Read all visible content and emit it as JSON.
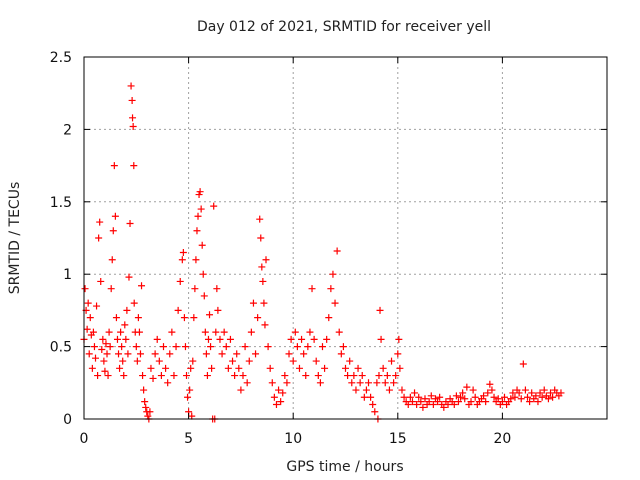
{
  "chart_data": {
    "type": "scatter",
    "title": "Day 012 of 2021, SRMTID for receiver yell",
    "xlabel": "GPS time / hours",
    "ylabel": "SRMTID / TECUs",
    "xlim": [
      0,
      25
    ],
    "ylim": [
      0,
      2.5
    ],
    "xticks": [
      0,
      5,
      10,
      15,
      20
    ],
    "yticks": [
      0,
      0.5,
      1,
      1.5,
      2,
      2.5
    ],
    "xtick_labels": [
      "0",
      "5",
      "10",
      "15",
      "20"
    ],
    "ytick_labels": [
      "0",
      "0.5",
      "1",
      "1.5",
      "2",
      "2.5"
    ],
    "grid": true,
    "marker": "+",
    "series": [
      {
        "name": "SRMTID",
        "color": "#ff0000",
        "points": [
          [
            0.0,
            0.55
          ],
          [
            0.05,
            0.9
          ],
          [
            0.1,
            0.75
          ],
          [
            0.15,
            0.62
          ],
          [
            0.2,
            0.8
          ],
          [
            0.25,
            0.45
          ],
          [
            0.3,
            0.7
          ],
          [
            0.35,
            0.58
          ],
          [
            0.4,
            0.35
          ],
          [
            0.45,
            0.6
          ],
          [
            0.5,
            0.5
          ],
          [
            0.55,
            0.42
          ],
          [
            0.6,
            0.78
          ],
          [
            0.65,
            0.3
          ],
          [
            0.7,
            1.25
          ],
          [
            0.75,
            1.36
          ],
          [
            0.8,
            0.95
          ],
          [
            0.85,
            0.48
          ],
          [
            0.9,
            0.55
          ],
          [
            0.95,
            0.4
          ],
          [
            1.0,
            0.33
          ],
          [
            1.05,
            0.52
          ],
          [
            1.1,
            0.45
          ],
          [
            1.15,
            0.3
          ],
          [
            1.2,
            0.6
          ],
          [
            1.25,
            0.5
          ],
          [
            1.3,
            0.9
          ],
          [
            1.35,
            1.1
          ],
          [
            1.4,
            1.3
          ],
          [
            1.45,
            1.75
          ],
          [
            1.5,
            1.4
          ],
          [
            1.55,
            0.7
          ],
          [
            1.6,
            0.55
          ],
          [
            1.65,
            0.45
          ],
          [
            1.7,
            0.35
          ],
          [
            1.75,
            0.6
          ],
          [
            1.8,
            0.5
          ],
          [
            1.85,
            0.4
          ],
          [
            1.9,
            0.3
          ],
          [
            1.95,
            0.65
          ],
          [
            2.0,
            0.55
          ],
          [
            2.05,
            0.75
          ],
          [
            2.1,
            0.45
          ],
          [
            2.15,
            0.98
          ],
          [
            2.2,
            1.35
          ],
          [
            2.25,
            2.3
          ],
          [
            2.3,
            2.2
          ],
          [
            2.32,
            2.08
          ],
          [
            2.35,
            2.02
          ],
          [
            2.38,
            1.75
          ],
          [
            2.4,
            0.8
          ],
          [
            2.45,
            0.6
          ],
          [
            2.5,
            0.5
          ],
          [
            2.55,
            0.4
          ],
          [
            2.6,
            0.7
          ],
          [
            2.65,
            0.6
          ],
          [
            2.7,
            0.45
          ],
          [
            2.75,
            0.92
          ],
          [
            2.8,
            0.3
          ],
          [
            2.85,
            0.2
          ],
          [
            2.9,
            0.12
          ],
          [
            2.95,
            0.08
          ],
          [
            3.0,
            0.05
          ],
          [
            3.05,
            0.02
          ],
          [
            3.1,
            0.0
          ],
          [
            3.15,
            0.05
          ],
          [
            3.2,
            0.35
          ],
          [
            3.3,
            0.28
          ],
          [
            3.4,
            0.45
          ],
          [
            3.5,
            0.55
          ],
          [
            3.6,
            0.4
          ],
          [
            3.7,
            0.3
          ],
          [
            3.8,
            0.5
          ],
          [
            3.9,
            0.35
          ],
          [
            4.0,
            0.25
          ],
          [
            4.1,
            0.45
          ],
          [
            4.2,
            0.6
          ],
          [
            4.3,
            0.3
          ],
          [
            4.4,
            0.5
          ],
          [
            4.5,
            0.75
          ],
          [
            4.6,
            0.95
          ],
          [
            4.7,
            1.1
          ],
          [
            4.75,
            1.15
          ],
          [
            4.8,
            0.7
          ],
          [
            4.85,
            0.5
          ],
          [
            4.9,
            0.3
          ],
          [
            4.95,
            0.15
          ],
          [
            5.0,
            0.05
          ],
          [
            5.05,
            0.2
          ],
          [
            5.1,
            0.35
          ],
          [
            5.15,
            0.02
          ],
          [
            5.2,
            0.4
          ],
          [
            5.25,
            0.7
          ],
          [
            5.3,
            0.9
          ],
          [
            5.35,
            1.1
          ],
          [
            5.4,
            1.3
          ],
          [
            5.45,
            1.4
          ],
          [
            5.5,
            1.55
          ],
          [
            5.55,
            1.57
          ],
          [
            5.6,
            1.45
          ],
          [
            5.65,
            1.2
          ],
          [
            5.7,
            1.0
          ],
          [
            5.75,
            0.85
          ],
          [
            5.8,
            0.6
          ],
          [
            5.85,
            0.45
          ],
          [
            5.9,
            0.3
          ],
          [
            5.95,
            0.55
          ],
          [
            6.0,
            0.72
          ],
          [
            6.05,
            0.5
          ],
          [
            6.1,
            0.35
          ],
          [
            6.15,
            0.0
          ],
          [
            6.2,
            1.47
          ],
          [
            6.25,
            0.0
          ],
          [
            6.3,
            0.6
          ],
          [
            6.35,
            0.9
          ],
          [
            6.4,
            0.75
          ],
          [
            6.5,
            0.55
          ],
          [
            6.6,
            0.45
          ],
          [
            6.7,
            0.6
          ],
          [
            6.8,
            0.5
          ],
          [
            6.9,
            0.35
          ],
          [
            7.0,
            0.55
          ],
          [
            7.1,
            0.4
          ],
          [
            7.2,
            0.3
          ],
          [
            7.3,
            0.45
          ],
          [
            7.4,
            0.35
          ],
          [
            7.5,
            0.2
          ],
          [
            7.6,
            0.3
          ],
          [
            7.7,
            0.5
          ],
          [
            7.8,
            0.25
          ],
          [
            7.9,
            0.4
          ],
          [
            8.0,
            0.6
          ],
          [
            8.1,
            0.8
          ],
          [
            8.2,
            0.45
          ],
          [
            8.3,
            0.7
          ],
          [
            8.4,
            1.38
          ],
          [
            8.45,
            1.25
          ],
          [
            8.5,
            1.05
          ],
          [
            8.55,
            0.95
          ],
          [
            8.6,
            0.8
          ],
          [
            8.65,
            0.65
          ],
          [
            8.7,
            1.1
          ],
          [
            8.8,
            0.5
          ],
          [
            8.9,
            0.35
          ],
          [
            9.0,
            0.25
          ],
          [
            9.1,
            0.15
          ],
          [
            9.2,
            0.1
          ],
          [
            9.3,
            0.2
          ],
          [
            9.4,
            0.12
          ],
          [
            9.5,
            0.18
          ],
          [
            9.6,
            0.3
          ],
          [
            9.7,
            0.25
          ],
          [
            9.8,
            0.45
          ],
          [
            9.9,
            0.55
          ],
          [
            10.0,
            0.4
          ],
          [
            10.1,
            0.6
          ],
          [
            10.2,
            0.5
          ],
          [
            10.3,
            0.35
          ],
          [
            10.4,
            0.55
          ],
          [
            10.5,
            0.45
          ],
          [
            10.6,
            0.3
          ],
          [
            10.7,
            0.5
          ],
          [
            10.8,
            0.6
          ],
          [
            10.9,
            0.9
          ],
          [
            11.0,
            0.55
          ],
          [
            11.1,
            0.4
          ],
          [
            11.2,
            0.3
          ],
          [
            11.3,
            0.25
          ],
          [
            11.4,
            0.5
          ],
          [
            11.5,
            0.35
          ],
          [
            11.6,
            0.55
          ],
          [
            11.7,
            0.7
          ],
          [
            11.8,
            0.9
          ],
          [
            11.9,
            1.0
          ],
          [
            12.0,
            0.8
          ],
          [
            12.1,
            1.16
          ],
          [
            12.2,
            0.6
          ],
          [
            12.3,
            0.45
          ],
          [
            12.4,
            0.5
          ],
          [
            12.5,
            0.35
          ],
          [
            12.6,
            0.3
          ],
          [
            12.7,
            0.4
          ],
          [
            12.8,
            0.25
          ],
          [
            12.9,
            0.3
          ],
          [
            13.0,
            0.2
          ],
          [
            13.1,
            0.35
          ],
          [
            13.2,
            0.25
          ],
          [
            13.3,
            0.3
          ],
          [
            13.4,
            0.15
          ],
          [
            13.5,
            0.2
          ],
          [
            13.6,
            0.25
          ],
          [
            13.7,
            0.15
          ],
          [
            13.8,
            0.1
          ],
          [
            13.9,
            0.05
          ],
          [
            14.0,
            0.25
          ],
          [
            14.05,
            0.0
          ],
          [
            14.1,
            0.3
          ],
          [
            14.15,
            0.75
          ],
          [
            14.2,
            0.55
          ],
          [
            14.3,
            0.35
          ],
          [
            14.4,
            0.25
          ],
          [
            14.5,
            0.3
          ],
          [
            14.6,
            0.2
          ],
          [
            14.7,
            0.4
          ],
          [
            14.8,
            0.25
          ],
          [
            14.9,
            0.3
          ],
          [
            15.0,
            0.45
          ],
          [
            15.05,
            0.55
          ],
          [
            15.1,
            0.35
          ],
          [
            15.2,
            0.2
          ],
          [
            15.3,
            0.15
          ],
          [
            15.4,
            0.12
          ],
          [
            15.5,
            0.1
          ],
          [
            15.6,
            0.15
          ],
          [
            15.7,
            0.12
          ],
          [
            15.8,
            0.18
          ],
          [
            15.9,
            0.1
          ],
          [
            16.0,
            0.15
          ],
          [
            16.1,
            0.12
          ],
          [
            16.2,
            0.08
          ],
          [
            16.3,
            0.14
          ],
          [
            16.4,
            0.1
          ],
          [
            16.5,
            0.12
          ],
          [
            16.6,
            0.16
          ],
          [
            16.7,
            0.1
          ],
          [
            16.8,
            0.14
          ],
          [
            16.9,
            0.12
          ],
          [
            17.0,
            0.15
          ],
          [
            17.1,
            0.1
          ],
          [
            17.2,
            0.08
          ],
          [
            17.3,
            0.12
          ],
          [
            17.4,
            0.1
          ],
          [
            17.5,
            0.14
          ],
          [
            17.6,
            0.12
          ],
          [
            17.7,
            0.1
          ],
          [
            17.8,
            0.16
          ],
          [
            17.9,
            0.12
          ],
          [
            18.0,
            0.15
          ],
          [
            18.1,
            0.18
          ],
          [
            18.2,
            0.14
          ],
          [
            18.3,
            0.22
          ],
          [
            18.4,
            0.1
          ],
          [
            18.5,
            0.12
          ],
          [
            18.6,
            0.2
          ],
          [
            18.7,
            0.15
          ],
          [
            18.8,
            0.1
          ],
          [
            18.9,
            0.12
          ],
          [
            19.0,
            0.14
          ],
          [
            19.1,
            0.16
          ],
          [
            19.2,
            0.12
          ],
          [
            19.3,
            0.18
          ],
          [
            19.4,
            0.24
          ],
          [
            19.5,
            0.2
          ],
          [
            19.6,
            0.15
          ],
          [
            19.7,
            0.12
          ],
          [
            19.8,
            0.14
          ],
          [
            19.9,
            0.1
          ],
          [
            20.0,
            0.12
          ],
          [
            20.1,
            0.15
          ],
          [
            20.2,
            0.1
          ],
          [
            20.3,
            0.12
          ],
          [
            20.4,
            0.14
          ],
          [
            20.5,
            0.18
          ],
          [
            20.6,
            0.15
          ],
          [
            20.7,
            0.2
          ],
          [
            20.8,
            0.18
          ],
          [
            20.9,
            0.14
          ],
          [
            21.0,
            0.38
          ],
          [
            21.1,
            0.2
          ],
          [
            21.2,
            0.15
          ],
          [
            21.3,
            0.12
          ],
          [
            21.4,
            0.18
          ],
          [
            21.5,
            0.14
          ],
          [
            21.6,
            0.16
          ],
          [
            21.7,
            0.12
          ],
          [
            21.8,
            0.18
          ],
          [
            21.9,
            0.15
          ],
          [
            22.0,
            0.2
          ],
          [
            22.1,
            0.16
          ],
          [
            22.2,
            0.14
          ],
          [
            22.3,
            0.18
          ],
          [
            22.4,
            0.15
          ],
          [
            22.5,
            0.2
          ],
          [
            22.6,
            0.18
          ],
          [
            22.7,
            0.16
          ],
          [
            22.8,
            0.18
          ]
        ]
      }
    ]
  }
}
